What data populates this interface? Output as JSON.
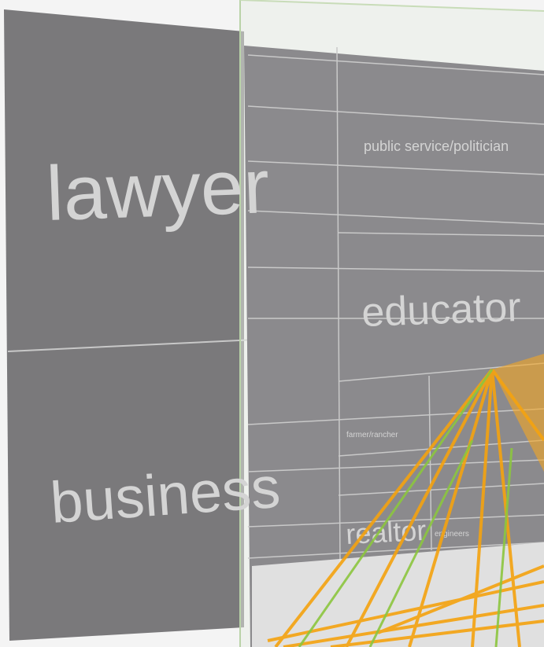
{
  "labels": {
    "lawyer": "lawyer",
    "business": "business",
    "public_service": "public service/politician",
    "educator": "educator",
    "farmer": "farmer/rancher",
    "realtor": "realtor",
    "engineers": "engineers"
  }
}
